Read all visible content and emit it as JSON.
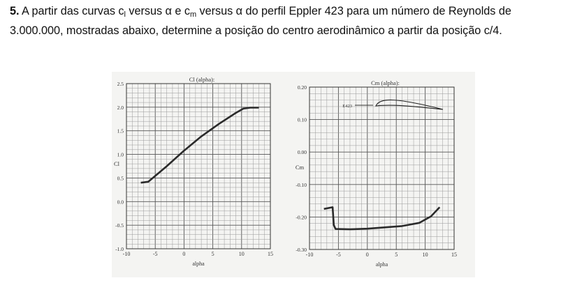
{
  "problem": {
    "number": "5.",
    "text_a": " A partir das curvas c",
    "sub_l": "l",
    "text_b": " versus α e c",
    "sub_m": "m",
    "text_c": " versus α do perfil Eppler 423 para um número de Reynolds de 3.000.000, mostradas abaixo, determine a posição do centro aerodinâmico a partir da posição c/4."
  },
  "chart_data": [
    {
      "type": "line",
      "title": "Cl (alpha):",
      "xlabel": "alpha",
      "ylabel": "Cl",
      "xlim": [
        -10,
        15
      ],
      "ylim": [
        -1.0,
        2.5
      ],
      "xticks": [
        "-10",
        "-5",
        "0",
        "5",
        "10",
        "15"
      ],
      "yticks": [
        "-1.0",
        "-0.5",
        "0.0",
        "0.5",
        "1.0",
        "1.5",
        "2.0",
        "2.5"
      ],
      "grid": true,
      "series": [
        {
          "x": [
            -7.5,
            -6.2,
            -3,
            0,
            3,
            6,
            9,
            10.3,
            11.5,
            13
          ],
          "y": [
            0.4,
            0.42,
            0.75,
            1.08,
            1.38,
            1.64,
            1.88,
            1.97,
            1.99,
            1.99
          ]
        }
      ]
    },
    {
      "type": "line",
      "title": "Cm (alpha):",
      "xlabel": "alpha",
      "ylabel": "Cm",
      "xlim": [
        -10,
        15
      ],
      "ylim": [
        -0.3,
        0.2
      ],
      "xticks": [
        "-10",
        "-5",
        "0",
        "5",
        "10",
        "15"
      ],
      "yticks": [
        "-0.30",
        "-0.20",
        "-0.10",
        "0.00",
        "0.10",
        "0.20"
      ],
      "grid": true,
      "annotation": "E423",
      "series": [
        {
          "x": [
            -7.5,
            -6.0,
            -5.8,
            -5.5,
            -3,
            0,
            3,
            6,
            9,
            11,
            12.5
          ],
          "y": [
            -0.175,
            -0.17,
            -0.225,
            -0.237,
            -0.238,
            -0.236,
            -0.232,
            -0.228,
            -0.218,
            -0.198,
            -0.17
          ]
        }
      ]
    }
  ]
}
